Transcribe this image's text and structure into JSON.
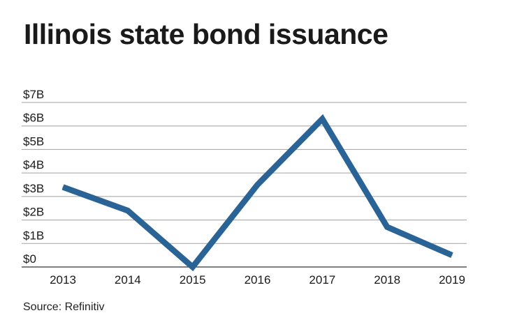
{
  "title": "Illinois state bond issuance",
  "source": "Source: Refinitiv",
  "colors": {
    "line": "#2a6496",
    "grid": "#a0a0a0",
    "axis": "#333333",
    "text": "#1a1a1a"
  },
  "chart_data": {
    "type": "line",
    "title": "Illinois state bond issuance",
    "xlabel": "",
    "ylabel": "",
    "categories": [
      "2013",
      "2014",
      "2015",
      "2016",
      "2017",
      "2018",
      "2019"
    ],
    "series": [
      {
        "values": [
          3.4,
          2.4,
          0.0,
          3.5,
          6.3,
          1.7,
          0.5
        ]
      }
    ],
    "ylim": [
      0,
      7
    ],
    "y_ticks": [
      0,
      1,
      2,
      3,
      4,
      5,
      6,
      7
    ],
    "y_tick_labels": [
      "$0",
      "$1B",
      "$2B",
      "$3B",
      "$4B",
      "$5B",
      "$6B",
      "$7B"
    ],
    "grid": true,
    "legend": "none"
  }
}
